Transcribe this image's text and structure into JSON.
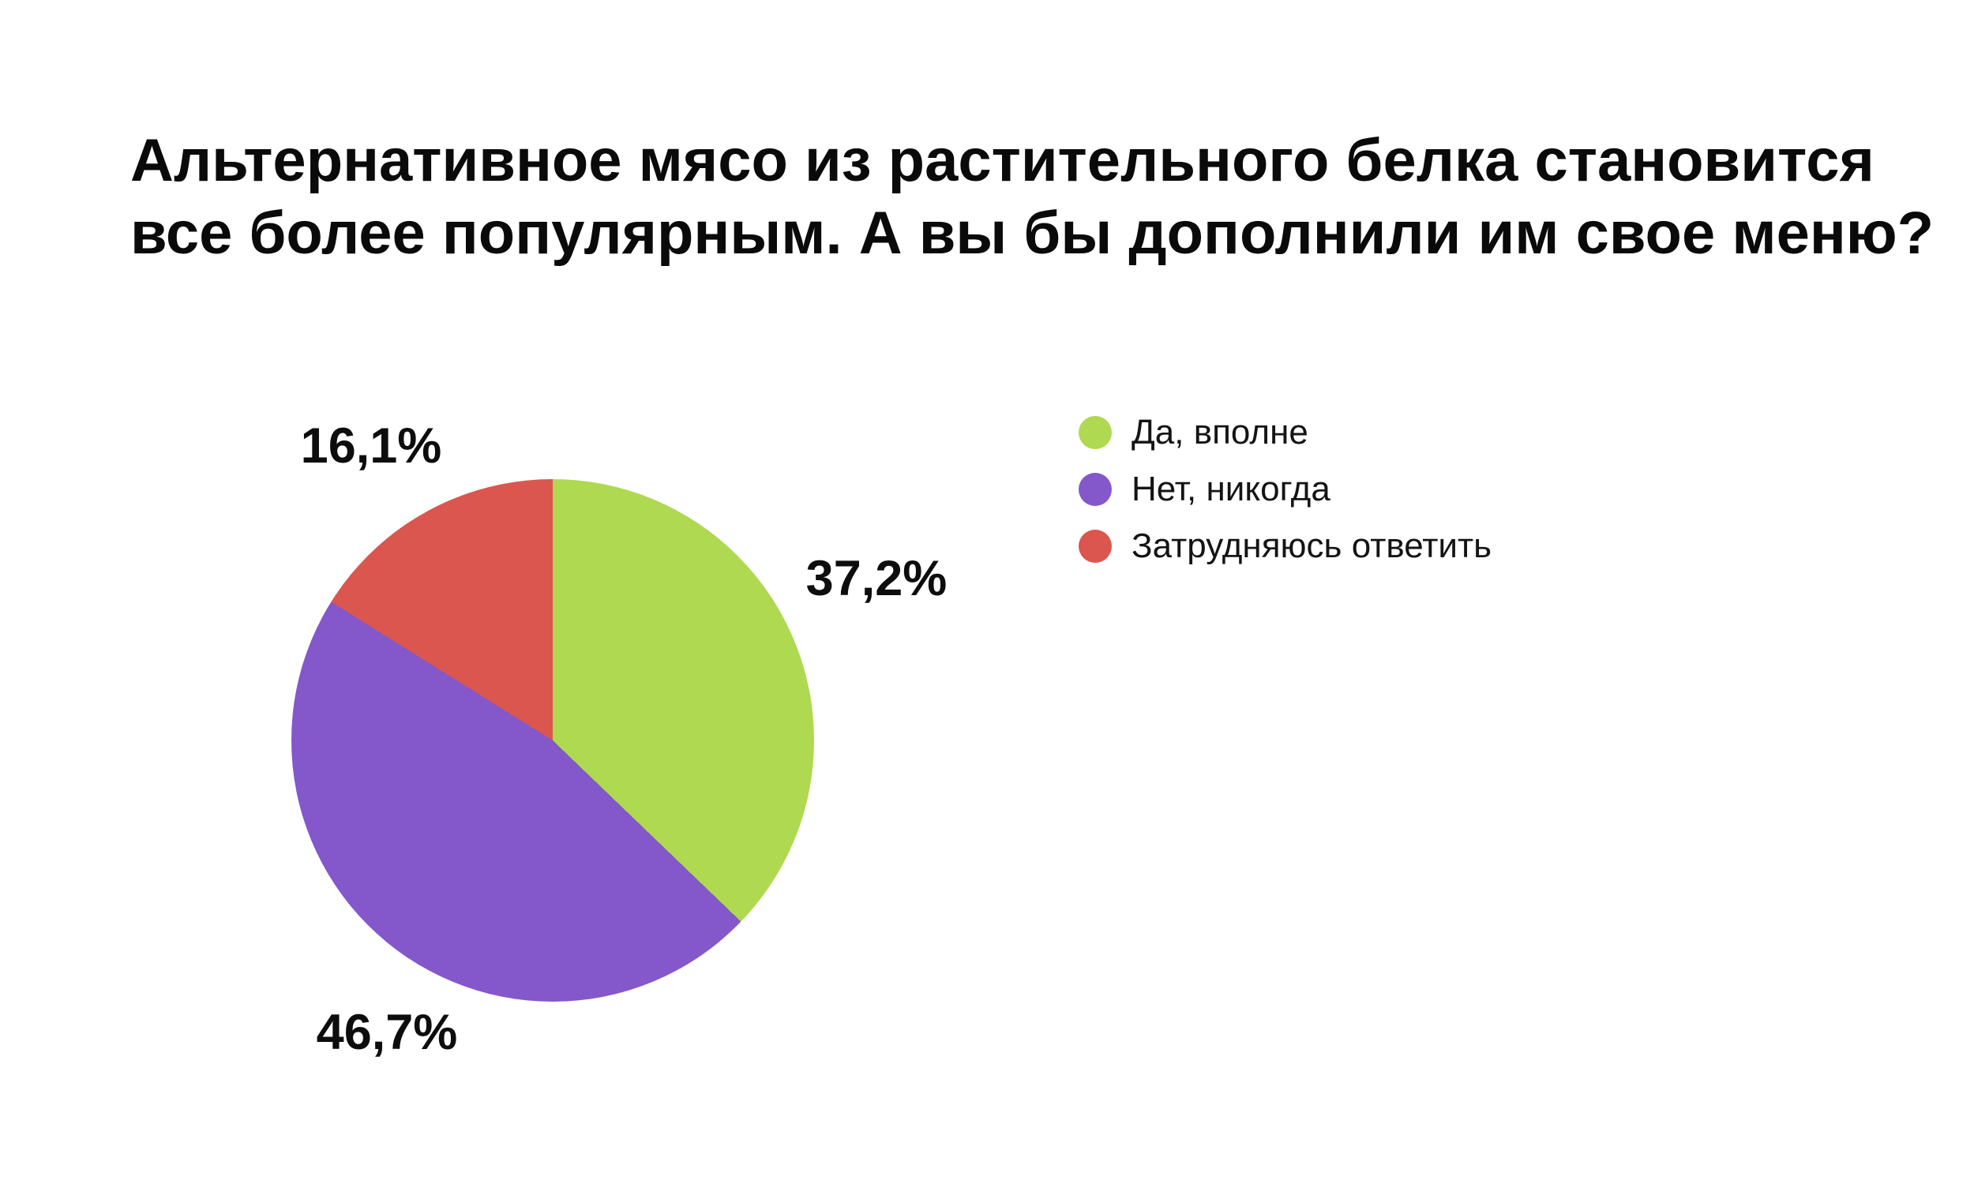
{
  "title_lines": {
    "line1": "Альтернативное мясо из растительного белка становится",
    "line2": "все более популярным. А вы бы дополнили им свое меню?"
  },
  "chart_data": {
    "type": "pie",
    "title": "Альтернативное мясо из растительного белка становится все более популярным. А вы бы дополнили им свое меню?",
    "direction": "clockwise",
    "start_angle_deg": 0,
    "legend_position": "right",
    "background_color": "#ffffff",
    "slices": [
      {
        "label": "Да, вполне",
        "value": 37.2,
        "display": "37,2%",
        "color": "#aed951"
      },
      {
        "label": "Нет, никогда",
        "value": 46.7,
        "display": "46,7%",
        "color": "#8457cb"
      },
      {
        "label": "Затрудняюсь ответить",
        "value": 16.1,
        "display": "16,1%",
        "color": "#db564e"
      }
    ]
  }
}
